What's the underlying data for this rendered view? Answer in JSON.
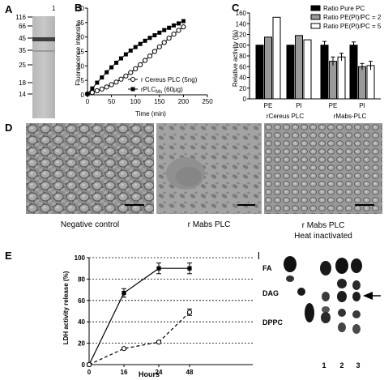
{
  "panel_labels": {
    "A": "A",
    "B": "B",
    "C": "C",
    "D": "D",
    "E": "E",
    "F": "F"
  },
  "gel_a": {
    "lane_label": "1",
    "markers": [
      "116",
      "66",
      "45",
      "35",
      "25",
      "18",
      "14"
    ],
    "marker_kda": [
      116,
      66,
      45,
      35,
      25,
      18,
      14
    ]
  },
  "chart_b": {
    "type": "line",
    "xlabel": "Time (min)",
    "ylabel": "Fluorescence intensity",
    "xlim": [
      0,
      250
    ],
    "ylim": [
      0,
      30
    ],
    "xticks": [
      "0",
      "50",
      "100",
      "150",
      "200",
      "250"
    ],
    "yticks": [
      "0",
      "5",
      "10",
      "15",
      "20",
      "25",
      "30"
    ],
    "series": [
      {
        "name": "r Cereus PLC (5ng)",
        "marker": "open-circle",
        "x": [
          0,
          10,
          20,
          30,
          40,
          50,
          60,
          70,
          80,
          90,
          100,
          110,
          120,
          130,
          140,
          150,
          160,
          170,
          180,
          190,
          200
        ],
        "y": [
          0.3,
          0.8,
          1.4,
          2.0,
          2.7,
          3.5,
          4.4,
          5.4,
          6.5,
          7.7,
          9.0,
          10.4,
          11.9,
          13.4,
          15.0,
          16.6,
          18.1,
          19.6,
          21.0,
          22.3,
          23.5
        ]
      },
      {
        "name": "rPLCMs (60µg)",
        "marker": "filled-square",
        "x": [
          0,
          10,
          20,
          30,
          40,
          50,
          60,
          70,
          80,
          90,
          100,
          110,
          120,
          130,
          140,
          150,
          160,
          170,
          180,
          190,
          200
        ],
        "y": [
          0.3,
          2.2,
          4.2,
          6.0,
          7.8,
          9.5,
          11.1,
          12.6,
          14.0,
          15.3,
          16.5,
          17.6,
          18.7,
          19.7,
          20.6,
          21.5,
          22.4,
          23.2,
          24.0,
          24.7,
          25.5
        ]
      }
    ],
    "legend": [
      "r Cereus PLC (5ng)",
      "rPLC"
    ],
    "legend_sub": "Ms",
    "legend_tail": " (60µg)"
  },
  "chart_c": {
    "type": "bar",
    "ylabel": "Relative activity (%)",
    "ylim": [
      0,
      160
    ],
    "yticks": [
      "0",
      "20",
      "40",
      "60",
      "80",
      "100",
      "120",
      "140",
      "160"
    ],
    "categories": [
      "PE",
      "PI",
      "PE",
      "PI"
    ],
    "group_labels": [
      "rCereus PLC",
      "rMabs-PLC"
    ],
    "series": [
      {
        "name": "Ratio Pure PC",
        "color": "#000000",
        "values": [
          100,
          100,
          100,
          100
        ],
        "err": [
          0,
          0,
          7,
          6
        ]
      },
      {
        "name": "Ratio PE(PI)/PC = 2",
        "color": "#9a9a9a",
        "values": [
          115,
          118,
          70,
          60
        ],
        "err": [
          0,
          0,
          8,
          6
        ]
      },
      {
        "name": "Ratio PE(PI)/PC = 5",
        "color": "#ffffff",
        "values": [
          152,
          110,
          78,
          62
        ],
        "err": [
          0,
          0,
          7,
          8
        ]
      }
    ]
  },
  "panel_d": {
    "captions": [
      "Negative control",
      "r Mabs PLC",
      "r Mabs PLC"
    ],
    "caption_line2": "Heat inactivated"
  },
  "chart_e": {
    "type": "line",
    "xlabel": "Hours",
    "ylabel": "LDH activity release (%)",
    "ylim": [
      0,
      100
    ],
    "yticks": [
      "0",
      "20",
      "40",
      "60",
      "80",
      "100"
    ],
    "categories": [
      "0",
      "16",
      "24",
      "48"
    ],
    "series": [
      {
        "style": "solid",
        "marker": "filled-square",
        "values": [
          0,
          67,
          90,
          90
        ],
        "err": [
          0,
          4,
          5,
          5
        ]
      },
      {
        "style": "dashed",
        "marker": "open-circle",
        "values": [
          0,
          15,
          21,
          49
        ],
        "err": [
          0,
          1,
          1,
          3
        ]
      }
    ]
  },
  "tlc_f": {
    "labels": [
      "FA",
      "DAG",
      "DPPC"
    ],
    "lanes": [
      "1",
      "2",
      "3"
    ]
  }
}
